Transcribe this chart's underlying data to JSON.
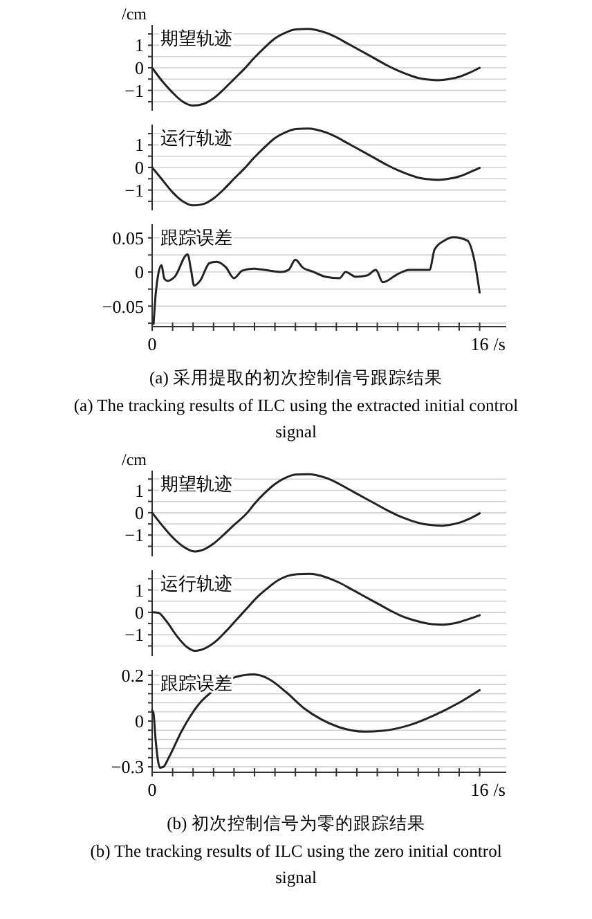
{
  "chart_data": [
    {
      "type": "line",
      "title": "期望轨迹",
      "ylabel": "/cm",
      "xlim": [
        0,
        17.3
      ],
      "ylim": [
        -1.9,
        1.9
      ],
      "yticks": [
        {
          "value": -1.5,
          "label": null
        },
        {
          "value": -1,
          "label": "−1"
        },
        {
          "value": -0.5,
          "label": null
        },
        0,
        {
          "value": 0.5,
          "label": null
        },
        1,
        {
          "value": 1.5,
          "label": null
        }
      ],
      "grid": "y",
      "tick_labels": "y",
      "series": [
        {
          "color": "#222222",
          "x": [
            0,
            0.5,
            1,
            1.5,
            2,
            2.5,
            3,
            3.5,
            4,
            4.5,
            5,
            5.5,
            6,
            6.5,
            7,
            7.6,
            8,
            8.5,
            9,
            9.5,
            10,
            10.5,
            11,
            11.5,
            12,
            12.5,
            13,
            13.5,
            14,
            14.5,
            15,
            15.5,
            16
          ],
          "values": [
            0,
            -0.6,
            -1.1,
            -1.5,
            -1.67,
            -1.6,
            -1.35,
            -0.95,
            -0.5,
            -0.05,
            0.45,
            0.9,
            1.3,
            1.55,
            1.7,
            1.72,
            1.68,
            1.55,
            1.35,
            1.1,
            0.85,
            0.6,
            0.35,
            0.1,
            -0.12,
            -0.3,
            -0.45,
            -0.52,
            -0.55,
            -0.5,
            -0.4,
            -0.22,
            0
          ]
        }
      ]
    },
    {
      "type": "line",
      "title": "运行轨迹",
      "xlim": [
        0,
        17.3
      ],
      "ylim": [
        -1.9,
        1.9
      ],
      "yticks": [
        {
          "value": -1.5,
          "label": null
        },
        {
          "value": -1,
          "label": "−1"
        },
        {
          "value": -0.5,
          "label": null
        },
        0,
        {
          "value": 0.5,
          "label": null
        },
        1,
        {
          "value": 1.5,
          "label": null
        }
      ],
      "grid": "y",
      "tick_labels": "y",
      "series": [
        {
          "color": "#222222",
          "x": [
            0,
            0.5,
            1,
            1.5,
            2,
            2.5,
            3,
            3.5,
            4,
            4.5,
            5,
            5.5,
            6,
            6.5,
            7,
            7.6,
            8,
            8.5,
            9,
            9.5,
            10,
            10.5,
            11,
            11.5,
            12,
            12.5,
            13,
            13.5,
            14,
            14.5,
            15,
            15.5,
            16
          ],
          "values": [
            0,
            -0.55,
            -1.1,
            -1.5,
            -1.68,
            -1.62,
            -1.37,
            -0.97,
            -0.5,
            -0.05,
            0.45,
            0.9,
            1.3,
            1.55,
            1.7,
            1.72,
            1.68,
            1.55,
            1.35,
            1.1,
            0.85,
            0.6,
            0.35,
            0.1,
            -0.12,
            -0.3,
            -0.45,
            -0.52,
            -0.55,
            -0.5,
            -0.4,
            -0.22,
            -0.02
          ]
        }
      ]
    },
    {
      "type": "line",
      "title": "跟踪误差",
      "xlim": [
        0,
        17.3
      ],
      "ylim": [
        -0.08,
        0.07
      ],
      "xticks": [
        {
          "value": 0,
          "label": "0"
        },
        {
          "value": 1,
          "label": null
        },
        {
          "value": 2,
          "label": null
        },
        {
          "value": 3,
          "label": null
        },
        {
          "value": 4,
          "label": null
        },
        {
          "value": 5,
          "label": null
        },
        {
          "value": 6,
          "label": null
        },
        {
          "value": 7,
          "label": null
        },
        {
          "value": 8,
          "label": null
        },
        {
          "value": 9,
          "label": null
        },
        {
          "value": 10,
          "label": null
        },
        {
          "value": 11,
          "label": null
        },
        {
          "value": 12,
          "label": null
        },
        {
          "value": 13,
          "label": null
        },
        {
          "value": 14,
          "label": null
        },
        {
          "value": 15,
          "label": null
        },
        {
          "value": 16,
          "label": "16"
        }
      ],
      "xlabel": "/s",
      "yticks": [
        {
          "value": -0.075,
          "label": null
        },
        {
          "value": -0.05,
          "label": "−0.05"
        },
        {
          "value": -0.025,
          "label": null
        },
        0,
        {
          "value": 0.025,
          "label": null
        },
        0.05
      ],
      "grid": "y",
      "annotations": [
        "(a) 采用提取的初次控制信号跟踪结果",
        "(a) The tracking results of ILC using the extracted initial control signal"
      ],
      "series": [
        {
          "color": "#222222",
          "x": [
            0.07,
            0.18,
            0.3,
            0.45,
            0.6,
            0.75,
            1.1,
            1.73,
            1.9,
            2.05,
            2.34,
            2.8,
            3.14,
            3.6,
            4.0,
            4.4,
            4.95,
            5.5,
            6.3,
            6.66,
            7.0,
            7.34,
            7.9,
            8.48,
            9.16,
            9.45,
            9.95,
            10.5,
            10.93,
            11.27,
            12.0,
            12.57,
            13.55,
            13.8,
            14.27,
            14.73,
            15.4,
            15.75,
            16
          ],
          "values": [
            -0.076,
            -0.03,
            -0.003,
            0.01,
            -0.01,
            -0.013,
            -0.007,
            0.026,
            0.003,
            -0.02,
            -0.013,
            0.013,
            0.015,
            0.007,
            -0.009,
            0.002,
            0.005,
            0.003,
            0,
            0.003,
            0.018,
            0.007,
            0,
            -0.007,
            -0.009,
            0,
            -0.007,
            -0.005,
            0.003,
            -0.015,
            -0.003,
            0.003,
            0.003,
            0.033,
            0.046,
            0.051,
            0.046,
            0.016,
            -0.03
          ]
        }
      ]
    },
    {
      "type": "line",
      "title": "期望轨迹",
      "ylabel": "/cm",
      "xlim": [
        0,
        17.3
      ],
      "ylim": [
        -1.95,
        1.88
      ],
      "yticks": [
        {
          "value": -1.5,
          "label": null
        },
        {
          "value": -1,
          "label": "−1"
        },
        {
          "value": -0.5,
          "label": null
        },
        0,
        {
          "value": 0.5,
          "label": null
        },
        1,
        {
          "value": 1.5,
          "label": null
        }
      ],
      "grid": "y",
      "tick_labels": "y",
      "series": [
        {
          "color": "#222222",
          "x": [
            0,
            0.5,
            1,
            1.5,
            2.1,
            2.5,
            3,
            3.5,
            4,
            4.65,
            5,
            5.5,
            6,
            6.5,
            7,
            7.63,
            8,
            8.5,
            9,
            9.5,
            10,
            10.5,
            11,
            11.5,
            12,
            12.5,
            13,
            13.5,
            14.2,
            14.5,
            15,
            15.5,
            16
          ],
          "values": [
            0,
            -0.58,
            -1.1,
            -1.5,
            -1.73,
            -1.65,
            -1.38,
            -0.98,
            -0.55,
            0,
            0.4,
            0.88,
            1.28,
            1.55,
            1.7,
            1.72,
            1.68,
            1.55,
            1.35,
            1.1,
            0.85,
            0.6,
            0.35,
            0.1,
            -0.12,
            -0.3,
            -0.45,
            -0.54,
            -0.58,
            -0.55,
            -0.45,
            -0.27,
            -0.03
          ]
        }
      ]
    },
    {
      "type": "line",
      "title": "运行轨迹",
      "xlim": [
        0,
        17.3
      ],
      "ylim": [
        -1.95,
        1.88
      ],
      "yticks": [
        {
          "value": -1.5,
          "label": null
        },
        {
          "value": -1,
          "label": "−1"
        },
        {
          "value": -0.5,
          "label": null
        },
        0,
        {
          "value": 0.5,
          "label": null
        },
        1,
        {
          "value": 1.5,
          "label": null
        }
      ],
      "grid": "y",
      "tick_labels": "y",
      "series": [
        {
          "color": "#222222",
          "x": [
            0,
            0.3,
            0.7,
            1.2,
            1.7,
            2.1,
            2.6,
            3.1,
            3.6,
            4.1,
            4.6,
            5.1,
            5.6,
            6.1,
            6.6,
            7.1,
            7.7,
            8.2,
            8.7,
            9.2,
            9.7,
            10.2,
            10.7,
            11.2,
            11.7,
            12.2,
            12.7,
            13.2,
            13.7,
            14.2,
            14.7,
            15.2,
            15.6,
            16
          ],
          "values": [
            0,
            -0.02,
            -0.4,
            -1.05,
            -1.55,
            -1.72,
            -1.6,
            -1.3,
            -0.85,
            -0.35,
            0.15,
            0.65,
            1.05,
            1.4,
            1.62,
            1.7,
            1.72,
            1.65,
            1.5,
            1.3,
            1.05,
            0.8,
            0.55,
            0.3,
            0.05,
            -0.17,
            -0.33,
            -0.45,
            -0.53,
            -0.55,
            -0.5,
            -0.38,
            -0.26,
            -0.13
          ]
        }
      ]
    },
    {
      "type": "line",
      "title": "跟踪误差",
      "xlim": [
        0,
        17.3
      ],
      "ylim": [
        -0.33,
        0.23
      ],
      "xticks": [
        {
          "value": 0,
          "label": "0"
        },
        {
          "value": 1,
          "label": null
        },
        {
          "value": 2,
          "label": null
        },
        {
          "value": 3,
          "label": null
        },
        {
          "value": 4,
          "label": null
        },
        {
          "value": 5,
          "label": null
        },
        {
          "value": 6,
          "label": null
        },
        {
          "value": 7,
          "label": null
        },
        {
          "value": 8,
          "label": null
        },
        {
          "value": 9,
          "label": null
        },
        {
          "value": 10,
          "label": null
        },
        {
          "value": 11,
          "label": null
        },
        {
          "value": 12,
          "label": null
        },
        {
          "value": 13,
          "label": null
        },
        {
          "value": 14,
          "label": null
        },
        {
          "value": 15,
          "label": null
        },
        {
          "value": 16,
          "label": "16"
        }
      ],
      "xlabel": "/s",
      "yticks": [
        {
          "value": -0.3,
          "label": "−0.3"
        },
        {
          "value": -0.25,
          "label": null
        },
        {
          "value": -0.2,
          "label": null
        },
        {
          "value": -0.15,
          "label": null
        },
        {
          "value": -0.1,
          "label": null
        },
        {
          "value": -0.05,
          "label": "0"
        },
        {
          "value": 0,
          "label": null
        },
        {
          "value": 0.05,
          "label": null
        },
        {
          "value": 0.1,
          "label": null
        },
        {
          "value": 0.15,
          "label": null
        },
        0.2
      ],
      "grid": "y",
      "annotations": [
        "(b) 初次控制信号为零的跟踪结果",
        "(b) The tracking results of ILC using the zero initial control signal"
      ],
      "series": [
        {
          "color": "#222222",
          "x": [
            0,
            0.06,
            0.17,
            0.28,
            0.38,
            0.55,
            0.81,
            1.45,
            2.3,
            3.16,
            4.0,
            4.97,
            5.7,
            6.57,
            7.42,
            8.27,
            9.13,
            10.4,
            11.26,
            12.54,
            13.8,
            15.1,
            16
          ],
          "values": [
            0.008,
            -0.004,
            -0.153,
            -0.263,
            -0.305,
            -0.3,
            -0.25,
            -0.103,
            0.045,
            0.13,
            0.188,
            0.205,
            0.18,
            0.106,
            0.02,
            -0.041,
            -0.083,
            -0.108,
            -0.103,
            -0.073,
            -0.017,
            0.057,
            0.119
          ]
        }
      ]
    }
  ]
}
